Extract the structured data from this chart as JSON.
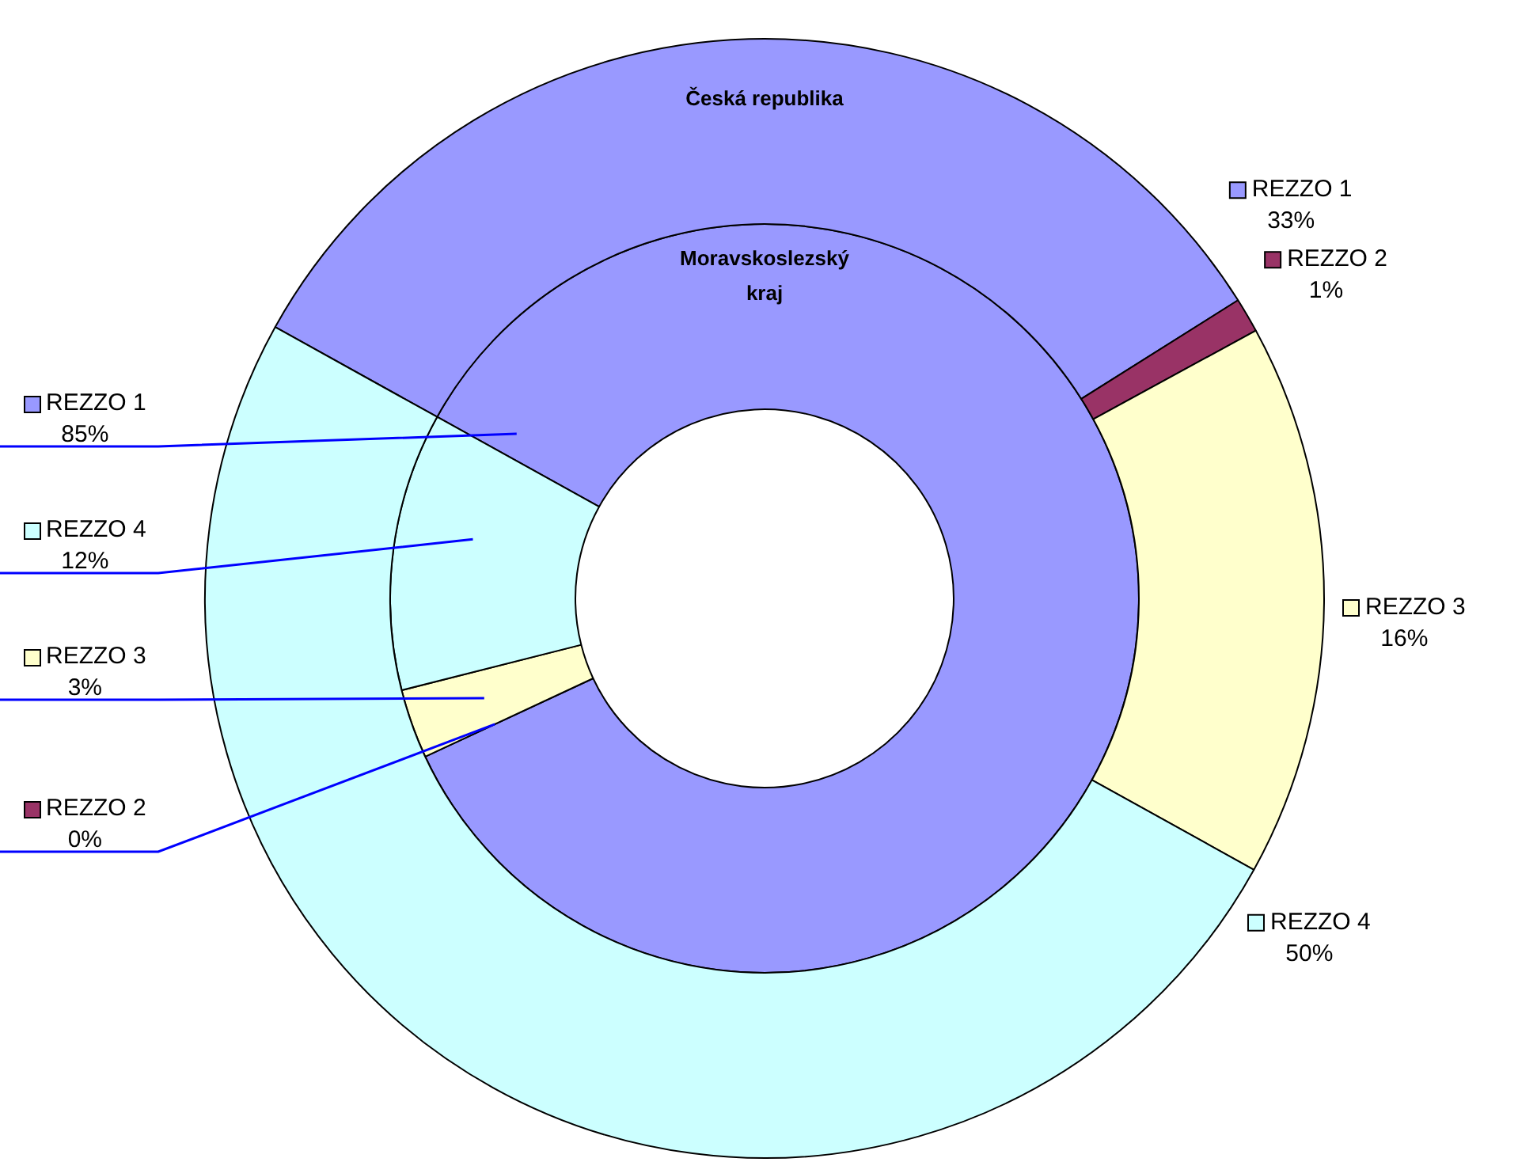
{
  "chart_data": {
    "type": "donut",
    "legend": "right",
    "categories": [
      "REZZO 1",
      "REZZO 2",
      "REZZO 3",
      "REZZO 4"
    ],
    "series": [
      {
        "name": "Česká republika",
        "values": [
          33,
          1,
          16,
          50
        ],
        "value_labels": [
          "33%",
          "1%",
          "16%",
          "50%"
        ],
        "colors": [
          "#9999ff",
          "#993366",
          "#ffffcc",
          "#ccffff"
        ]
      },
      {
        "name": "Moravskoslezský kraj",
        "values": [
          85,
          0,
          3,
          12
        ],
        "value_labels": [
          "85%",
          "0%",
          "3%",
          "12%"
        ],
        "colors": [
          "#9999ff",
          "#993366",
          "#ffffcc",
          "#ccffff"
        ]
      }
    ]
  }
}
